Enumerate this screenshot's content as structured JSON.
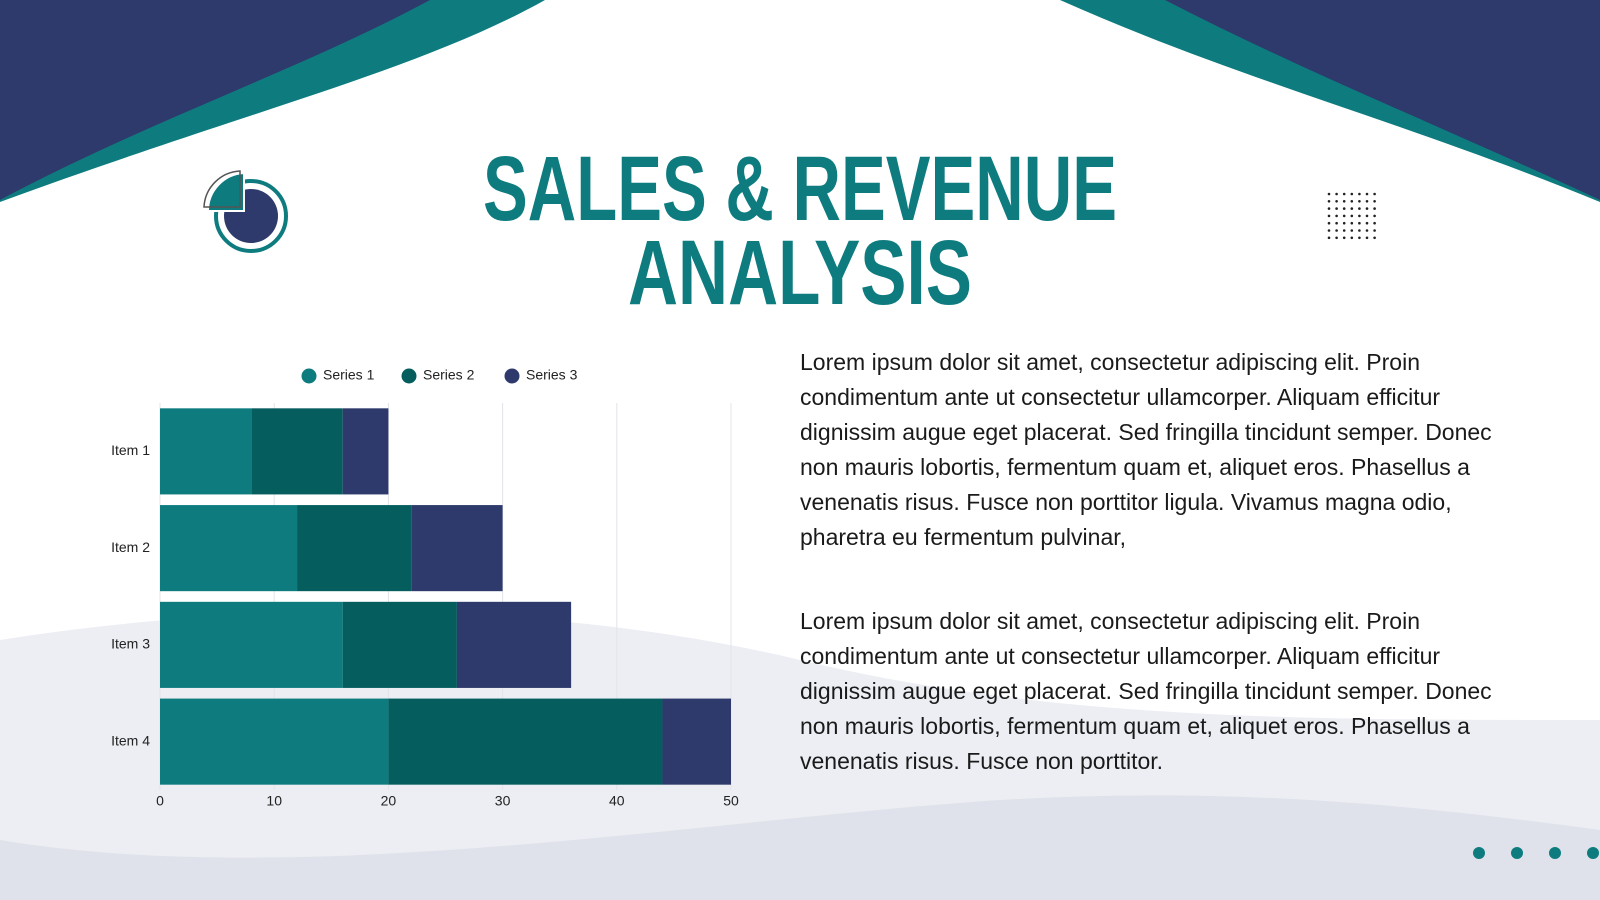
{
  "header": {
    "title": [
      "SALES & REVENUE",
      "ANALYSIS"
    ]
  },
  "chart_data": {
    "type": "stacked-barh",
    "categories": [
      "Item 1",
      "Item 2",
      "Item 3",
      "Item 4"
    ],
    "series": [
      {
        "name": "Series 1",
        "color": "#0e7c7f",
        "values": [
          8,
          12,
          16,
          20
        ]
      },
      {
        "name": "Series 2",
        "color": "#065d5e",
        "values": [
          8,
          10,
          10,
          24
        ]
      },
      {
        "name": "Series 3",
        "color": "#2d3a6b",
        "values": [
          4,
          8,
          10,
          6
        ]
      }
    ],
    "xlim": [
      0,
      50
    ],
    "xticks": [
      0,
      10,
      20,
      30,
      40,
      50
    ],
    "grid": true,
    "legend": "top"
  },
  "paragraphs": [
    "Lorem ipsum dolor sit amet, consectetur adipiscing elit. Proin condimentum ante ut consectetur ullamcorper. Aliquam efficitur dignissim augue eget placerat. Sed fringilla tincidunt semper. Donec non mauris lobortis, fermentum quam et, aliquet eros. Phasellus a venenatis risus. Fusce non porttitor ligula. Vivamus magna odio, pharetra eu fermentum pulvinar,",
    "Lorem ipsum dolor sit amet, consectetur adipiscing elit. Proin condimentum ante ut consectetur ullamcorper. Aliquam efficitur dignissim augue eget placerat. Sed fringilla tincidunt semper. Donec non mauris lobortis, fermentum quam et, aliquet eros. Phasellus a venenatis risus. Fusce non porttitor."
  ]
}
